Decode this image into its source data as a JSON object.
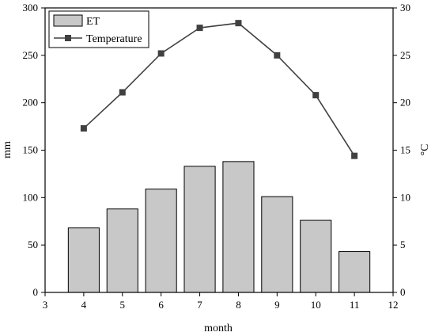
{
  "chart_data": {
    "type": "bar+line",
    "x_label": "month",
    "y_left_label": "mm",
    "y_right_label": "°C",
    "x_range": [
      3,
      12
    ],
    "x_ticks": [
      "3",
      "4",
      "5",
      "6",
      "7",
      "8",
      "9",
      "10",
      "11",
      "12"
    ],
    "y_left_range": [
      0,
      300
    ],
    "y_left_ticks": [
      "0",
      "50",
      "100",
      "150",
      "200",
      "250",
      "300"
    ],
    "y_right_range": [
      0,
      30
    ],
    "y_right_ticks": [
      "0",
      "5",
      "10",
      "15",
      "20",
      "25",
      "30"
    ],
    "grid": false,
    "legend_position": "top-left",
    "series": [
      {
        "name": "ET",
        "kind": "bar",
        "axis": "left",
        "color": "#c8c8c8",
        "x": [
          4,
          5,
          6,
          7,
          8,
          9,
          10,
          11
        ],
        "values": [
          68,
          88,
          109,
          133,
          138,
          101,
          76,
          43
        ]
      },
      {
        "name": "Temperature",
        "kind": "line",
        "axis": "right",
        "color": "#404040",
        "marker": "square",
        "x": [
          4,
          5,
          6,
          7,
          8,
          9,
          10,
          11
        ],
        "values": [
          17.3,
          21.1,
          25.2,
          27.9,
          28.4,
          25.0,
          20.8,
          14.4
        ]
      }
    ]
  }
}
